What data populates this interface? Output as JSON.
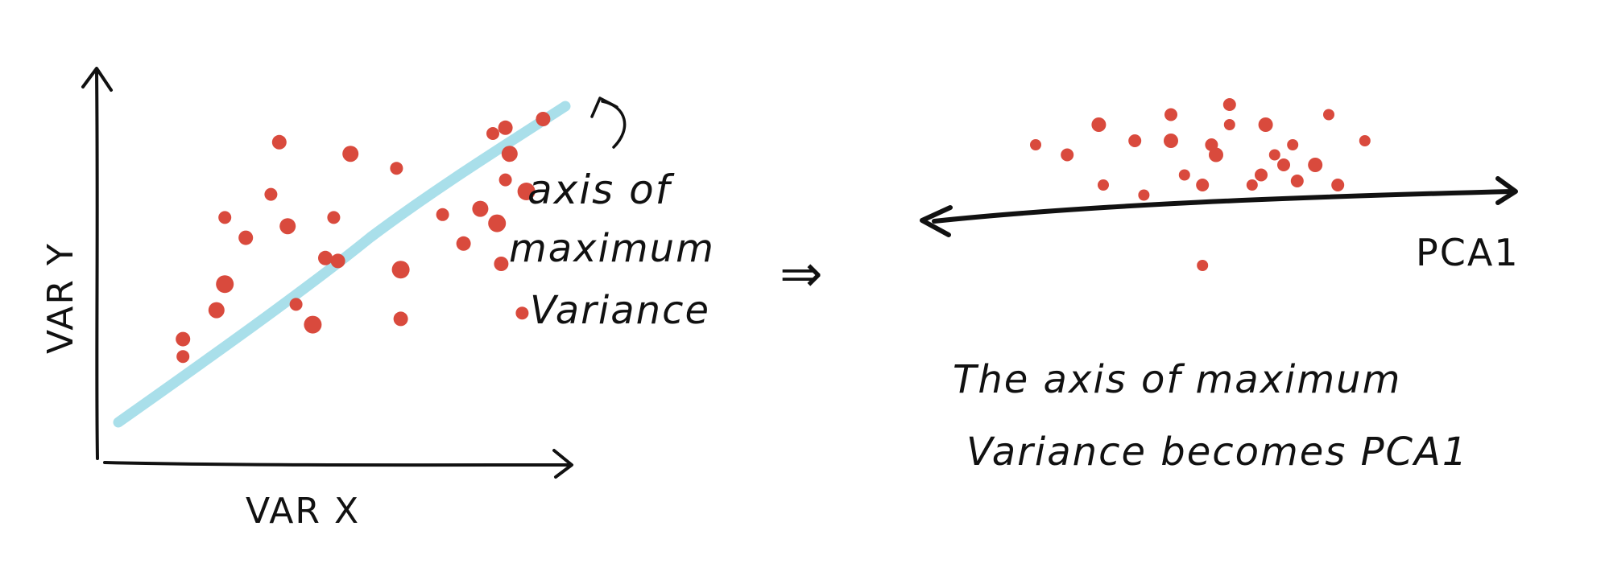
{
  "left_panel": {
    "x_axis_label": "VAR X",
    "y_axis_label": "VAR Y",
    "annotation_lines": [
      "axis of",
      "maximum",
      "Variance"
    ],
    "line_color": "#a9dfea",
    "point_color": "#d94a3d",
    "points": [
      [
        0.11,
        0.87
      ],
      [
        0.11,
        0.81
      ],
      [
        0.19,
        0.71
      ],
      [
        0.21,
        0.39
      ],
      [
        0.21,
        0.62
      ],
      [
        0.26,
        0.46
      ],
      [
        0.32,
        0.31
      ],
      [
        0.34,
        0.13
      ],
      [
        0.36,
        0.42
      ],
      [
        0.38,
        0.69
      ],
      [
        0.42,
        0.76
      ],
      [
        0.45,
        0.53
      ],
      [
        0.47,
        0.39
      ],
      [
        0.48,
        0.54
      ],
      [
        0.51,
        0.17
      ],
      [
        0.62,
        0.22
      ],
      [
        0.63,
        0.57
      ],
      [
        0.63,
        0.74
      ],
      [
        0.73,
        0.38
      ],
      [
        0.78,
        0.48
      ],
      [
        0.82,
        0.36
      ],
      [
        0.85,
        0.1
      ],
      [
        0.86,
        0.41
      ],
      [
        0.87,
        0.55
      ],
      [
        0.88,
        0.26
      ],
      [
        0.88,
        0.08
      ],
      [
        0.89,
        0.17
      ],
      [
        0.92,
        0.72
      ],
      [
        0.93,
        0.3
      ],
      [
        0.97,
        0.05
      ]
    ]
  },
  "arrow_glyph": "⇒",
  "right_panel": {
    "axis_label": "PCA1",
    "caption_lines": [
      "The axis of maximum",
      "Variance becomes PCA1"
    ],
    "points": [
      [
        0.1,
        0.2
      ],
      [
        0.17,
        0.25
      ],
      [
        0.24,
        0.1
      ],
      [
        0.25,
        0.4
      ],
      [
        0.32,
        0.18
      ],
      [
        0.34,
        0.45
      ],
      [
        0.4,
        0.05
      ],
      [
        0.4,
        0.18
      ],
      [
        0.43,
        0.35
      ],
      [
        0.47,
        0.4
      ],
      [
        0.47,
        0.8
      ],
      [
        0.49,
        0.2
      ],
      [
        0.5,
        0.25
      ],
      [
        0.53,
        0.1
      ],
      [
        0.53,
        0.0
      ],
      [
        0.58,
        0.4
      ],
      [
        0.6,
        0.35
      ],
      [
        0.61,
        0.1
      ],
      [
        0.63,
        0.25
      ],
      [
        0.65,
        0.3
      ],
      [
        0.67,
        0.2
      ],
      [
        0.68,
        0.38
      ],
      [
        0.72,
        0.3
      ],
      [
        0.75,
        0.05
      ],
      [
        0.77,
        0.4
      ],
      [
        0.83,
        0.18
      ]
    ]
  }
}
